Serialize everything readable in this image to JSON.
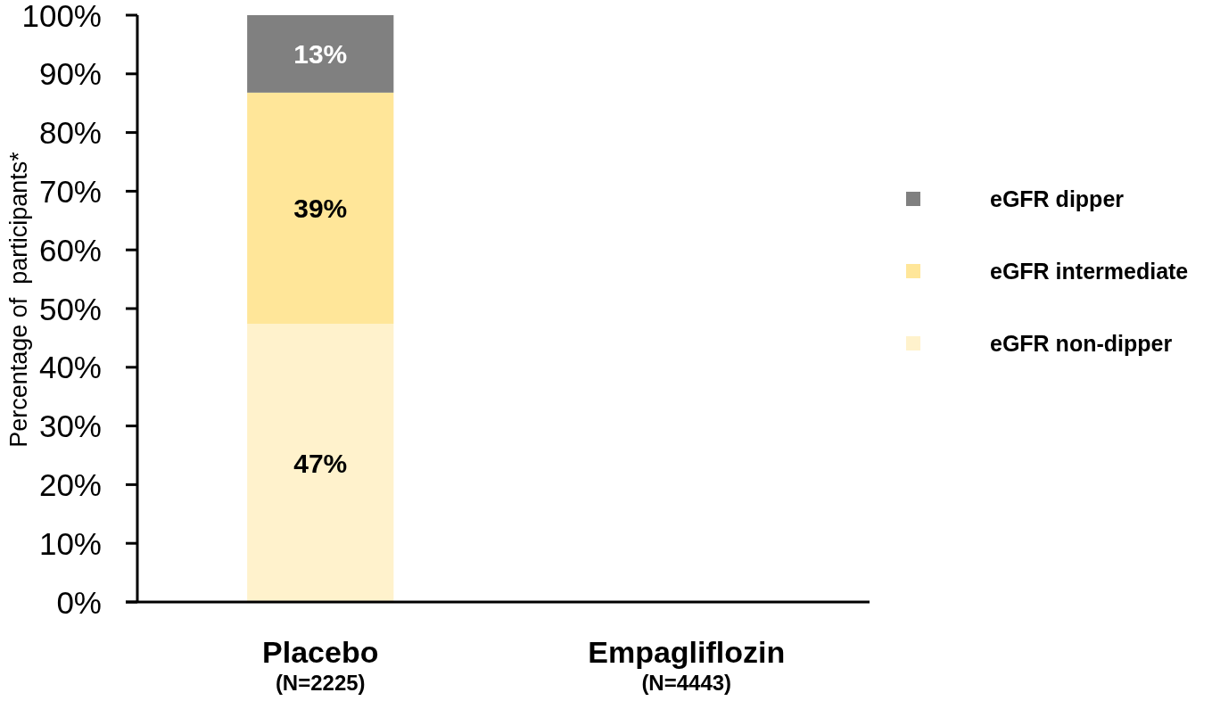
{
  "chart_data": {
    "type": "bar",
    "stacked": true,
    "ylabel": "Percentage of  participants*",
    "categories": [
      "Placebo\n(N=2225)",
      "Empagliflozin\n(N=4443)"
    ],
    "series": [
      {
        "name": "eGFR non-dipper",
        "color": "#fff2cc",
        "values": [
          47.4,
          null
        ],
        "value_labels": [
          "47%",
          null
        ]
      },
      {
        "name": "eGFR intermediate",
        "color": "#ffe699",
        "values": [
          39.4,
          null
        ],
        "value_labels": [
          "39%",
          null
        ]
      },
      {
        "name": "eGFR dipper",
        "color": "#808080",
        "values": [
          13.2,
          null
        ],
        "value_labels": [
          "13%",
          null
        ]
      }
    ],
    "ylim": [
      0,
      100
    ],
    "yticks": [
      {
        "value": 0,
        "label": "0%"
      },
      {
        "value": 10,
        "label": "10%"
      },
      {
        "value": 20,
        "label": "20%"
      },
      {
        "value": 30,
        "label": "30%"
      },
      {
        "value": 40,
        "label": "40%"
      },
      {
        "value": 50,
        "label": "50%"
      },
      {
        "value": 60,
        "label": "60%"
      },
      {
        "value": 70,
        "label": "70%"
      },
      {
        "value": 80,
        "label": "80%"
      },
      {
        "value": 90,
        "label": "90%"
      },
      {
        "value": 100,
        "label": "100%"
      }
    ],
    "legend": "right"
  }
}
